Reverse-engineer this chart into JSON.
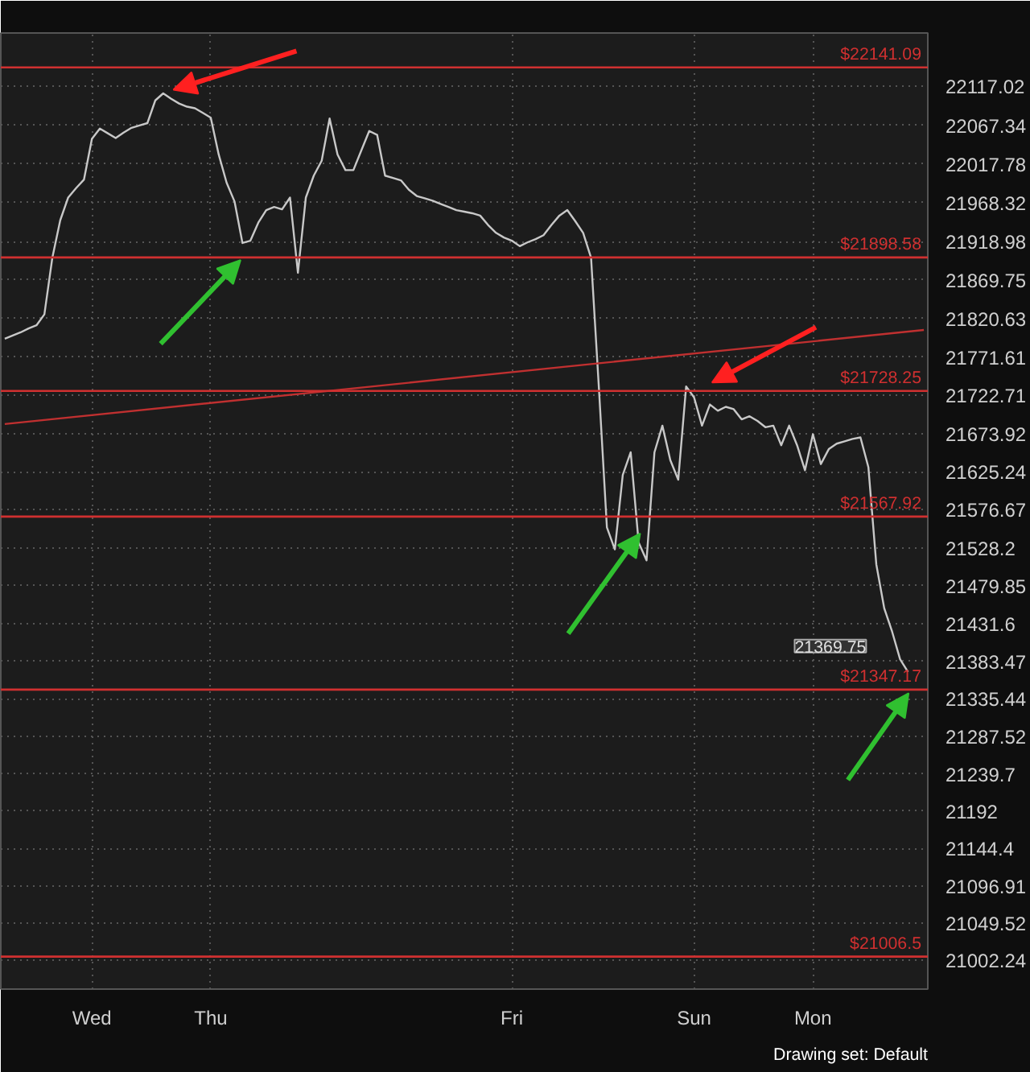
{
  "chart_data": {
    "type": "line",
    "categories": [
      null,
      null,
      null,
      null,
      null,
      null,
      null,
      null,
      null,
      null,
      null,
      "Wed",
      null,
      null,
      null,
      null,
      null,
      null,
      null,
      null,
      null,
      null,
      null,
      null,
      null,
      null,
      "Thu",
      null,
      null,
      null,
      null,
      null,
      null,
      null,
      null,
      null,
      null,
      null,
      null,
      null,
      null,
      null,
      null,
      null,
      null,
      null,
      null,
      null,
      null,
      null,
      null,
      null,
      null,
      null,
      null,
      null,
      null,
      null,
      null,
      null,
      null,
      null,
      null,
      null,
      "Fri",
      null,
      null,
      null,
      null,
      null,
      null,
      null,
      null,
      null,
      null,
      null,
      null,
      null,
      null,
      null,
      null,
      null,
      null,
      null,
      null,
      null,
      null,
      "Sun",
      null,
      null,
      null,
      null,
      null,
      null,
      null,
      null,
      null,
      null,
      null,
      null,
      null,
      null,
      "Mon",
      null,
      null,
      null,
      null,
      null,
      null,
      null,
      null,
      null,
      null,
      null,
      null,
      null,
      null
    ],
    "series": [
      {
        "color": "#c8c8c8",
        "values": [
          21795,
          21799,
          21803,
          21808,
          21812,
          21826,
          21898,
          21946,
          21975,
          21987,
          21998,
          22050,
          22063,
          22057,
          22051,
          22058,
          22064,
          22067,
          22070,
          22099,
          22108,
          22101,
          22095,
          22091,
          22089,
          22083,
          22077,
          22030,
          21994,
          21970,
          21917,
          21920,
          21943,
          21959,
          21963,
          21960,
          21975,
          21879,
          21975,
          22003,
          22022,
          22076,
          22030,
          22010,
          22010,
          22035,
          22060,
          22055,
          22003,
          22000,
          21997,
          21985,
          21977,
          21974,
          21971,
          21967,
          21963,
          21959,
          21957,
          21955,
          21952,
          21940,
          21930,
          21924,
          21920,
          21913,
          21918,
          21922,
          21927,
          21940,
          21952,
          21959,
          21945,
          21930,
          21898,
          21730,
          21554,
          21526,
          21621,
          21650,
          21535,
          21512,
          21650,
          21684,
          21640,
          21615,
          21734,
          21720,
          21684,
          21711,
          21703,
          21708,
          21705,
          21692,
          21696,
          21690,
          21682,
          21684,
          21659,
          21684,
          21659,
          21627,
          21673,
          21635,
          21654,
          21661,
          21664,
          21667,
          21669,
          21631,
          21507,
          21451,
          21421,
          21386,
          21369.75,
          null,
          null
        ]
      },
      {
        "color": "#c03030",
        "values": [
          21686,
          null,
          null,
          null,
          null,
          null,
          null,
          null,
          null,
          null,
          null,
          null,
          null,
          null,
          null,
          null,
          null,
          null,
          null,
          null,
          null,
          null,
          null,
          null,
          null,
          null,
          null,
          null,
          null,
          null,
          null,
          null,
          null,
          null,
          null,
          null,
          null,
          null,
          null,
          null,
          null,
          null,
          null,
          null,
          null,
          null,
          null,
          null,
          null,
          null,
          null,
          null,
          null,
          null,
          null,
          null,
          null,
          null,
          null,
          null,
          null,
          null,
          null,
          null,
          null,
          null,
          null,
          null,
          null,
          null,
          null,
          null,
          null,
          null,
          null,
          null,
          null,
          null,
          null,
          null,
          null,
          null,
          null,
          null,
          null,
          null,
          null,
          null,
          null,
          null,
          null,
          null,
          null,
          null,
          null,
          null,
          null,
          null,
          null,
          null,
          null,
          null,
          null,
          null,
          null,
          null,
          null,
          null,
          null,
          null,
          null,
          null,
          null,
          null,
          null,
          null,
          21806
        ]
      }
    ],
    "ylim": [
      20965,
      22185
    ],
    "yticks": [
      22117.02,
      22067.34,
      22017.78,
      21968.32,
      21918.98,
      21869.75,
      21820.63,
      21771.61,
      21722.71,
      21673.92,
      21625.24,
      21576.67,
      21528.2,
      21479.85,
      21431.6,
      21383.47,
      21335.44,
      21287.52,
      21239.7,
      21192,
      21144.4,
      21096.91,
      21049.52,
      21002.24
    ],
    "ref_lines": [
      {
        "axis": "y",
        "value": 22141.09,
        "label": "$22141.09",
        "color": "#d03030"
      },
      {
        "axis": "y",
        "value": 21898.58,
        "label": "$21898.58",
        "color": "#d03030"
      },
      {
        "axis": "y",
        "value": 21728.25,
        "label": "$21728.25",
        "color": "#d03030"
      },
      {
        "axis": "y",
        "value": 21567.92,
        "label": "$21567.92",
        "color": "#d03030"
      },
      {
        "axis": "y",
        "value": 21347.17,
        "label": "$21347.17",
        "color": "#d03030"
      },
      {
        "axis": "y",
        "value": 21006.5,
        "label": "$21006.5",
        "color": "#d03030"
      }
    ],
    "annotations": [
      "21369.75",
      "Drawing set: Default"
    ],
    "grid": true
  }
}
